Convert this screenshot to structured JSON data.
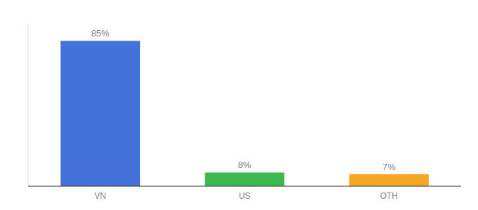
{
  "chart_data": {
    "type": "bar",
    "categories": [
      "VN",
      "US",
      "OTH"
    ],
    "values": [
      85,
      8,
      7
    ],
    "value_labels": [
      "85%",
      "8%",
      "7%"
    ],
    "colors": [
      "#4472db",
      "#3dba4e",
      "#f5a623"
    ],
    "ylim": [
      0,
      95
    ],
    "data_labels": true,
    "tick_labels": "x"
  }
}
